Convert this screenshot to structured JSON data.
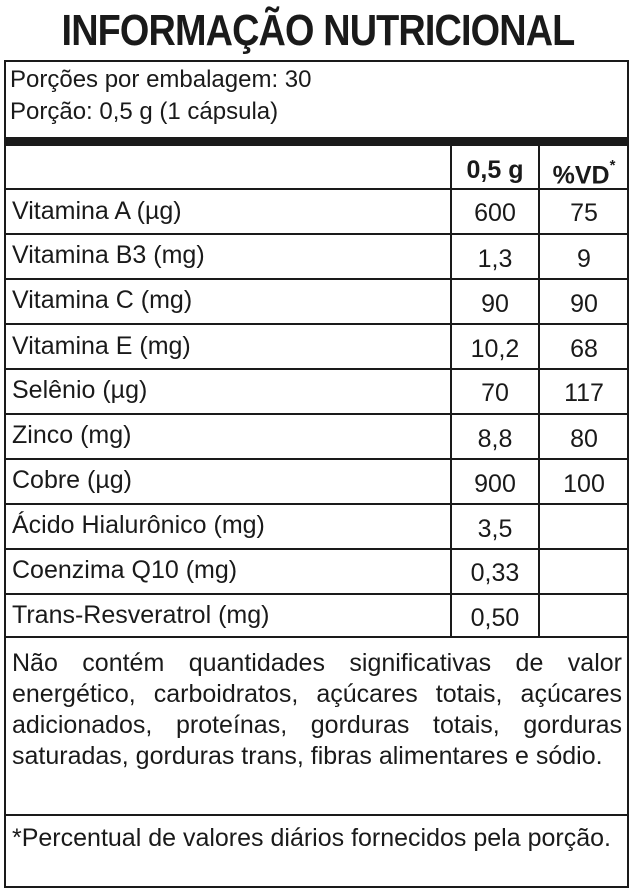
{
  "title": "INFORMAÇÃO NUTRICIONAL",
  "servings_per_package": "Porções por embalagem: 30",
  "serving_size": "Porção: 0,5 g (1 cápsula)",
  "header": {
    "amount": "0,5 g",
    "dv": "%VD",
    "dv_mark": "*"
  },
  "rows": [
    {
      "name": "Vitamina A (µg)",
      "amount": "600",
      "dv": "75"
    },
    {
      "name": "Vitamina B3 (mg)",
      "amount": "1,3",
      "dv": "9"
    },
    {
      "name": "Vitamina C (mg)",
      "amount": "90",
      "dv": "90"
    },
    {
      "name": "Vitamina E (mg)",
      "amount": "10,2",
      "dv": "68"
    },
    {
      "name": "Selênio (µg)",
      "amount": "70",
      "dv": "117"
    },
    {
      "name": "Zinco (mg)",
      "amount": "8,8",
      "dv": "80"
    },
    {
      "name": "Cobre (µg)",
      "amount": "900",
      "dv": "100"
    },
    {
      "name": "Ácido Hialurônico (mg)",
      "amount": "3,5",
      "dv": ""
    },
    {
      "name": "Coenzima Q10 (mg)",
      "amount": "0,33",
      "dv": ""
    },
    {
      "name": "Trans-Resveratrol (mg)",
      "amount": "0,50",
      "dv": ""
    }
  ],
  "disclaimer": "Não contém quantidades significativas de valor energético, carboidratos, açúcares totais, açúcares adicionados, proteínas, gorduras totais, gorduras saturadas, gorduras trans, fibras alimentares e sódio.",
  "footnote": "*Percentual de valores diários fornecidos pela porção."
}
